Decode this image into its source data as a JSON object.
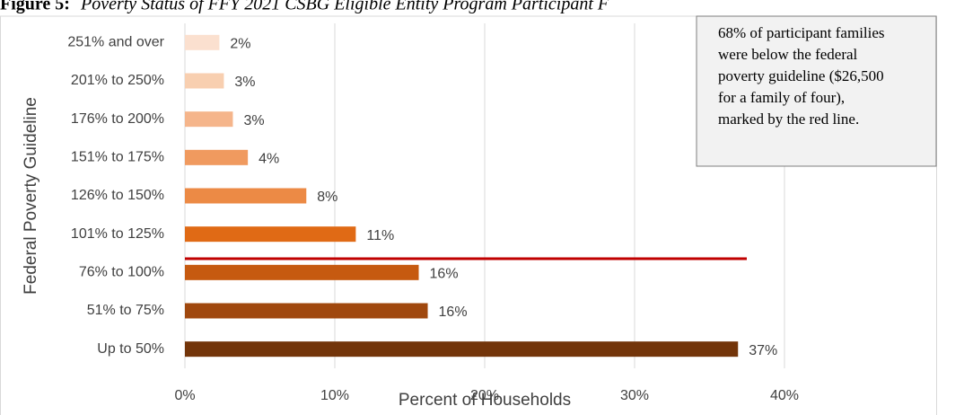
{
  "chart_data": {
    "type": "bar",
    "orientation": "horizontal",
    "title_label": "Figure 5:",
    "title": "Poverty Status of FFY 2021 CSBG Eligible Entity Program Participant F",
    "x_label": "Percent of Households",
    "y_label": "Federal Poverty Guideline",
    "categories": [
      "251% and over",
      "201% to 250%",
      "176% to 200%",
      "151% to 175%",
      "126% to 150%",
      "101% to 125%",
      "76% to 100%",
      "51% to 75%",
      "Up to 50%"
    ],
    "values": [
      2.3,
      2.6,
      3.2,
      4.2,
      8.1,
      11.4,
      15.6,
      16.2,
      36.9
    ],
    "value_labels": [
      "2%",
      "3%",
      "3%",
      "4%",
      "8%",
      "11%",
      "16%",
      "16%",
      "37%"
    ],
    "colors": [
      "#fbe0cf",
      "#f8cfb0",
      "#f5b58b",
      "#f09a5f",
      "#ec8a45",
      "#e06a15",
      "#c65a10",
      "#a0480e",
      "#73350a"
    ],
    "xlim": [
      0,
      50
    ],
    "xticks": [
      {
        "value": 0,
        "label": "0%"
      },
      {
        "value": 10,
        "label": "10%"
      },
      {
        "value": 20,
        "label": "20%"
      },
      {
        "value": 30,
        "label": "30%"
      },
      {
        "value": 40,
        "label": "40%"
      }
    ],
    "grid": true,
    "annotation": [
      "68% of participant families",
      "were below the federal",
      "poverty guideline ($26,500",
      "for a family of four),",
      "marked by the red line."
    ]
  }
}
